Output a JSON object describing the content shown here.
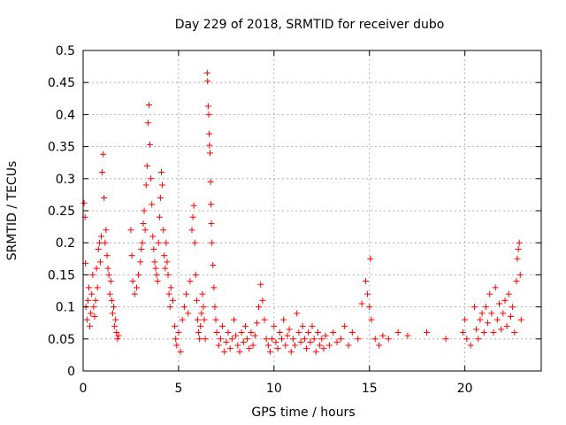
{
  "chart_data": {
    "type": "scatter",
    "title": "Day 229 of 2018, SRMTID for receiver dubo",
    "xlabel": "GPS time / hours",
    "ylabel": "SRMTID / TECUs",
    "xlim": [
      0,
      24
    ],
    "ylim": [
      0,
      0.5
    ],
    "xticks": [
      0,
      5,
      10,
      15,
      20
    ],
    "yticks": [
      0,
      0.05,
      0.1,
      0.15,
      0.2,
      0.25,
      0.3,
      0.35,
      0.4,
      0.45,
      0.5
    ],
    "xtick_labels": [
      "0",
      "5",
      "10",
      "15",
      "20"
    ],
    "ytick_labels": [
      "0",
      "0.05",
      "0.1",
      "0.15",
      "0.2",
      "0.25",
      "0.3",
      "0.35",
      "0.4",
      "0.45",
      "0.5"
    ],
    "grid": true,
    "marker": "+",
    "series_color": "#ff0000",
    "series": [
      {
        "name": "SRMTID",
        "points": [
          [
            0.05,
            0.262
          ],
          [
            0.1,
            0.24
          ],
          [
            0.12,
            0.168
          ],
          [
            0.15,
            0.1
          ],
          [
            0.2,
            0.08
          ],
          [
            0.25,
            0.11
          ],
          [
            0.3,
            0.13
          ],
          [
            0.35,
            0.07
          ],
          [
            0.4,
            0.09
          ],
          [
            0.45,
            0.12
          ],
          [
            0.5,
            0.15
          ],
          [
            0.55,
            0.1
          ],
          [
            0.6,
            0.085
          ],
          [
            0.65,
            0.11
          ],
          [
            0.7,
            0.16
          ],
          [
            0.75,
            0.13
          ],
          [
            0.8,
            0.19
          ],
          [
            0.85,
            0.2
          ],
          [
            0.9,
            0.17
          ],
          [
            0.95,
            0.21
          ],
          [
            1.0,
            0.31
          ],
          [
            1.05,
            0.338
          ],
          [
            1.1,
            0.27
          ],
          [
            1.15,
            0.2
          ],
          [
            1.2,
            0.22
          ],
          [
            1.25,
            0.18
          ],
          [
            1.3,
            0.16
          ],
          [
            1.35,
            0.15
          ],
          [
            1.4,
            0.12
          ],
          [
            1.45,
            0.14
          ],
          [
            1.5,
            0.11
          ],
          [
            1.55,
            0.09
          ],
          [
            1.6,
            0.1
          ],
          [
            1.65,
            0.07
          ],
          [
            1.7,
            0.08
          ],
          [
            1.75,
            0.06
          ],
          [
            1.8,
            0.05
          ],
          [
            1.85,
            0.055
          ],
          [
            2.5,
            0.22
          ],
          [
            2.55,
            0.18
          ],
          [
            2.6,
            0.14
          ],
          [
            2.7,
            0.12
          ],
          [
            2.8,
            0.13
          ],
          [
            2.9,
            0.15
          ],
          [
            3.0,
            0.17
          ],
          [
            3.05,
            0.19
          ],
          [
            3.1,
            0.2
          ],
          [
            3.15,
            0.23
          ],
          [
            3.2,
            0.25
          ],
          [
            3.25,
            0.22
          ],
          [
            3.3,
            0.29
          ],
          [
            3.35,
            0.32
          ],
          [
            3.4,
            0.387
          ],
          [
            3.45,
            0.415
          ],
          [
            3.5,
            0.353
          ],
          [
            3.55,
            0.3
          ],
          [
            3.6,
            0.26
          ],
          [
            3.65,
            0.21
          ],
          [
            3.7,
            0.19
          ],
          [
            3.75,
            0.17
          ],
          [
            3.8,
            0.16
          ],
          [
            3.85,
            0.15
          ],
          [
            3.9,
            0.14
          ],
          [
            3.95,
            0.2
          ],
          [
            4.0,
            0.24
          ],
          [
            4.05,
            0.27
          ],
          [
            4.1,
            0.31
          ],
          [
            4.15,
            0.29
          ],
          [
            4.2,
            0.22
          ],
          [
            4.25,
            0.18
          ],
          [
            4.3,
            0.16
          ],
          [
            4.35,
            0.2
          ],
          [
            4.4,
            0.17
          ],
          [
            4.45,
            0.15
          ],
          [
            4.5,
            0.12
          ],
          [
            4.55,
            0.1
          ],
          [
            4.6,
            0.13
          ],
          [
            4.7,
            0.11
          ],
          [
            4.8,
            0.07
          ],
          [
            4.85,
            0.05
          ],
          [
            4.9,
            0.04
          ],
          [
            5.0,
            0.06
          ],
          [
            5.1,
            0.03
          ],
          [
            5.2,
            0.08
          ],
          [
            5.3,
            0.1
          ],
          [
            5.4,
            0.12
          ],
          [
            5.5,
            0.09
          ],
          [
            5.6,
            0.14
          ],
          [
            5.7,
            0.22
          ],
          [
            5.75,
            0.24
          ],
          [
            5.8,
            0.258
          ],
          [
            5.85,
            0.2
          ],
          [
            5.9,
            0.15
          ],
          [
            5.95,
            0.11
          ],
          [
            6.0,
            0.08
          ],
          [
            6.05,
            0.06
          ],
          [
            6.1,
            0.05
          ],
          [
            6.15,
            0.07
          ],
          [
            6.2,
            0.09
          ],
          [
            6.25,
            0.12
          ],
          [
            6.3,
            0.1
          ],
          [
            6.35,
            0.08
          ],
          [
            6.4,
            0.05
          ],
          [
            6.5,
            0.465
          ],
          [
            6.52,
            0.452
          ],
          [
            6.55,
            0.413
          ],
          [
            6.58,
            0.4
          ],
          [
            6.6,
            0.37
          ],
          [
            6.62,
            0.352
          ],
          [
            6.65,
            0.34
          ],
          [
            6.68,
            0.295
          ],
          [
            6.7,
            0.26
          ],
          [
            6.72,
            0.23
          ],
          [
            6.75,
            0.2
          ],
          [
            6.8,
            0.165
          ],
          [
            6.85,
            0.13
          ],
          [
            6.9,
            0.1
          ],
          [
            6.95,
            0.08
          ],
          [
            7.0,
            0.06
          ],
          [
            7.1,
            0.04
          ],
          [
            7.2,
            0.05
          ],
          [
            7.3,
            0.07
          ],
          [
            7.4,
            0.03
          ],
          [
            7.5,
            0.045
          ],
          [
            7.6,
            0.06
          ],
          [
            7.7,
            0.035
          ],
          [
            7.8,
            0.05
          ],
          [
            7.9,
            0.08
          ],
          [
            8.0,
            0.055
          ],
          [
            8.1,
            0.04
          ],
          [
            8.2,
            0.03
          ],
          [
            8.3,
            0.06
          ],
          [
            8.4,
            0.045
          ],
          [
            8.5,
            0.07
          ],
          [
            8.6,
            0.05
          ],
          [
            8.7,
            0.035
          ],
          [
            8.8,
            0.06
          ],
          [
            8.9,
            0.04
          ],
          [
            9.0,
            0.055
          ],
          [
            9.1,
            0.075
          ],
          [
            9.2,
            0.1
          ],
          [
            9.3,
            0.135
          ],
          [
            9.4,
            0.11
          ],
          [
            9.5,
            0.08
          ],
          [
            9.6,
            0.05
          ],
          [
            9.7,
            0.04
          ],
          [
            9.8,
            0.03
          ],
          [
            9.9,
            0.05
          ],
          [
            10.0,
            0.07
          ],
          [
            10.1,
            0.045
          ],
          [
            10.2,
            0.035
          ],
          [
            10.3,
            0.06
          ],
          [
            10.4,
            0.05
          ],
          [
            10.5,
            0.08
          ],
          [
            10.6,
            0.04
          ],
          [
            10.7,
            0.055
          ],
          [
            10.8,
            0.065
          ],
          [
            10.9,
            0.03
          ],
          [
            11.0,
            0.05
          ],
          [
            11.1,
            0.04
          ],
          [
            11.2,
            0.09
          ],
          [
            11.3,
            0.06
          ],
          [
            11.4,
            0.045
          ],
          [
            11.5,
            0.07
          ],
          [
            11.6,
            0.05
          ],
          [
            11.7,
            0.035
          ],
          [
            11.8,
            0.06
          ],
          [
            11.9,
            0.045
          ],
          [
            12.0,
            0.07
          ],
          [
            12.1,
            0.05
          ],
          [
            12.2,
            0.03
          ],
          [
            12.3,
            0.06
          ],
          [
            12.4,
            0.04
          ],
          [
            12.5,
            0.05
          ],
          [
            12.6,
            0.035
          ],
          [
            12.7,
            0.055
          ],
          [
            12.9,
            0.04
          ],
          [
            13.1,
            0.06
          ],
          [
            13.3,
            0.045
          ],
          [
            13.5,
            0.05
          ],
          [
            13.7,
            0.07
          ],
          [
            13.9,
            0.04
          ],
          [
            14.1,
            0.06
          ],
          [
            14.4,
            0.05
          ],
          [
            14.6,
            0.105
          ],
          [
            14.8,
            0.14
          ],
          [
            14.9,
            0.12
          ],
          [
            15.0,
            0.1
          ],
          [
            15.05,
            0.175
          ],
          [
            15.1,
            0.08
          ],
          [
            15.3,
            0.05
          ],
          [
            15.5,
            0.04
          ],
          [
            15.7,
            0.055
          ],
          [
            16.0,
            0.05
          ],
          [
            16.5,
            0.06
          ],
          [
            17.0,
            0.055
          ],
          [
            18.0,
            0.06
          ],
          [
            19.0,
            0.05
          ],
          [
            19.9,
            0.06
          ],
          [
            20.0,
            0.08
          ],
          [
            20.1,
            0.05
          ],
          [
            20.3,
            0.04
          ],
          [
            20.5,
            0.1
          ],
          [
            20.6,
            0.065
          ],
          [
            20.7,
            0.05
          ],
          [
            20.8,
            0.08
          ],
          [
            20.9,
            0.09
          ],
          [
            21.0,
            0.06
          ],
          [
            21.1,
            0.1
          ],
          [
            21.2,
            0.075
          ],
          [
            21.3,
            0.12
          ],
          [
            21.4,
            0.09
          ],
          [
            21.5,
            0.06
          ],
          [
            21.6,
            0.13
          ],
          [
            21.7,
            0.08
          ],
          [
            21.8,
            0.105
          ],
          [
            21.9,
            0.065
          ],
          [
            22.0,
            0.09
          ],
          [
            22.1,
            0.11
          ],
          [
            22.2,
            0.07
          ],
          [
            22.3,
            0.12
          ],
          [
            22.4,
            0.085
          ],
          [
            22.5,
            0.1
          ],
          [
            22.6,
            0.06
          ],
          [
            22.7,
            0.14
          ],
          [
            22.75,
            0.175
          ],
          [
            22.8,
            0.19
          ],
          [
            22.85,
            0.2
          ],
          [
            22.9,
            0.15
          ],
          [
            22.95,
            0.08
          ]
        ]
      }
    ]
  }
}
